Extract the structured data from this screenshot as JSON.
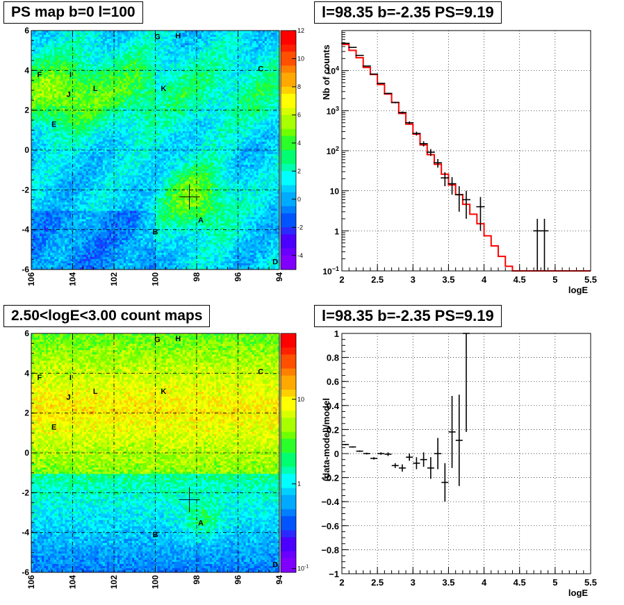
{
  "chart_data": [
    {
      "type": "heatmap",
      "title": "PS map b=0 l=100",
      "x_ticks": [
        "106",
        "104",
        "102",
        "100",
        "98",
        "96",
        "94"
      ],
      "xlim": [
        106,
        94
      ],
      "y_ticks": [
        "6",
        "4",
        "2",
        "0",
        "-2",
        "-4",
        "-6"
      ],
      "ylim": [
        -6,
        6
      ],
      "colorbar_ticks": [
        "12",
        "10",
        "8",
        "6",
        "4",
        "2",
        "0",
        "-2",
        "-4"
      ],
      "colorbar_range": [
        -5,
        12
      ],
      "grid": true,
      "marker": {
        "l": 98.35,
        "b": -2.35
      },
      "sources": [
        {
          "label": "G",
          "l": 99.9,
          "b": 5.7
        },
        {
          "label": "H",
          "l": 98.9,
          "b": 5.75
        },
        {
          "label": "F",
          "l": 105.6,
          "b": 3.8
        },
        {
          "label": "I",
          "l": 104.1,
          "b": 3.8
        },
        {
          "label": "C",
          "l": 94.9,
          "b": 4.1
        },
        {
          "label": "J",
          "l": 104.2,
          "b": 2.8
        },
        {
          "label": "L",
          "l": 102.9,
          "b": 3.1
        },
        {
          "label": "K",
          "l": 99.6,
          "b": 3.1
        },
        {
          "label": "E",
          "l": 104.9,
          "b": 1.3
        },
        {
          "label": "A",
          "l": 97.8,
          "b": -3.5
        },
        {
          "label": "B",
          "l": 100.0,
          "b": -4.1
        },
        {
          "label": "D",
          "l": 94.2,
          "b": -5.6
        }
      ]
    },
    {
      "type": "line",
      "title": "l=98.35 b=-2.35 PS=9.19",
      "xlabel": "logE",
      "ylabel": "Nb of counts",
      "xlim": [
        2,
        5.5
      ],
      "ylim": [
        0.1,
        100000
      ],
      "yscale": "log",
      "grid": true,
      "x_ticks": [
        "2",
        "2.5",
        "3",
        "3.5",
        "4",
        "4.5",
        "5",
        "5.5"
      ],
      "y_ticks": [
        {
          "v": 0.1,
          "base": "10",
          "exp": "−1"
        },
        {
          "v": 1,
          "base": "1",
          "exp": ""
        },
        {
          "v": 10,
          "base": "10",
          "exp": ""
        },
        {
          "v": 100,
          "base": "10",
          "exp": "2"
        },
        {
          "v": 1000,
          "base": "10",
          "exp": "3"
        },
        {
          "v": 10000,
          "base": "10",
          "exp": "4"
        }
      ],
      "model_color": "#ff0000",
      "model": {
        "edges": [
          2.0,
          2.1,
          2.2,
          2.3,
          2.4,
          2.5,
          2.6,
          2.7,
          2.8,
          2.9,
          3.0,
          3.1,
          3.2,
          3.3,
          3.4,
          3.5,
          3.6,
          3.7,
          3.8,
          3.9,
          4.0,
          4.1,
          4.2,
          4.3,
          4.4,
          5.5
        ],
        "values": [
          45000,
          32000,
          21000,
          12000,
          8000,
          4500,
          2600,
          1600,
          850,
          460,
          260,
          140,
          80,
          46,
          26,
          14,
          8,
          4.6,
          2.6,
          1.5,
          0.75,
          0.42,
          0.23,
          0.13,
          0.1
        ]
      },
      "data": [
        {
          "x": 2.05,
          "y": 48000,
          "yerr": 400
        },
        {
          "x": 2.15,
          "y": 38000,
          "yerr": 350
        },
        {
          "x": 2.25,
          "y": 24000,
          "yerr": 300
        },
        {
          "x": 2.35,
          "y": 13000,
          "yerr": 200
        },
        {
          "x": 2.45,
          "y": 8200,
          "yerr": 150
        },
        {
          "x": 2.55,
          "y": 4800,
          "yerr": 120
        },
        {
          "x": 2.65,
          "y": 2700,
          "yerr": 90
        },
        {
          "x": 2.75,
          "y": 1600,
          "yerr": 70
        },
        {
          "x": 2.85,
          "y": 900,
          "yerr": 55
        },
        {
          "x": 2.95,
          "y": 500,
          "yerr": 40
        },
        {
          "x": 3.05,
          "y": 270,
          "yerr": 30
        },
        {
          "x": 3.15,
          "y": 150,
          "yerr": 22
        },
        {
          "x": 3.25,
          "y": 92,
          "yerr": 18
        },
        {
          "x": 3.35,
          "y": 50,
          "yerr": 12
        },
        {
          "x": 3.45,
          "y": 21,
          "yerr": 8
        },
        {
          "x": 3.55,
          "y": 15,
          "yerr": 7
        },
        {
          "x": 3.65,
          "y": 8,
          "yerr": 5
        },
        {
          "x": 3.75,
          "y": 6,
          "yerr": 4
        },
        {
          "x": 3.95,
          "y": 4,
          "yerr": 3
        },
        {
          "x": 4.75,
          "y": 1,
          "yerr": 1
        },
        {
          "x": 4.85,
          "y": 1,
          "yerr": 1
        }
      ]
    },
    {
      "type": "heatmap",
      "title": "2.50<logE<3.00 count maps",
      "x_ticks": [
        "106",
        "104",
        "102",
        "100",
        "98",
        "96",
        "94"
      ],
      "xlim": [
        106,
        94
      ],
      "y_ticks": [
        "6",
        "4",
        "2",
        "0",
        "-2",
        "-4",
        "-6"
      ],
      "ylim": [
        -6,
        6
      ],
      "colorbar_scale": "log",
      "colorbar_ticks": [
        {
          "v": 10,
          "base": "10",
          "exp": ""
        },
        {
          "v": 1,
          "base": "1",
          "exp": ""
        },
        {
          "v": 0.1,
          "base": "10",
          "exp": "-1"
        }
      ],
      "grid": true,
      "marker": {
        "l": 98.35,
        "b": -2.35
      },
      "sources": [
        {
          "label": "G",
          "l": 99.9,
          "b": 5.7
        },
        {
          "label": "H",
          "l": 98.9,
          "b": 5.75
        },
        {
          "label": "F",
          "l": 105.6,
          "b": 3.8
        },
        {
          "label": "I",
          "l": 104.1,
          "b": 3.8
        },
        {
          "label": "C",
          "l": 94.9,
          "b": 4.1
        },
        {
          "label": "J",
          "l": 104.2,
          "b": 2.8
        },
        {
          "label": "L",
          "l": 102.9,
          "b": 3.1
        },
        {
          "label": "K",
          "l": 99.6,
          "b": 3.1
        },
        {
          "label": "E",
          "l": 104.9,
          "b": 1.3
        },
        {
          "label": "A",
          "l": 97.8,
          "b": -3.5
        },
        {
          "label": "B",
          "l": 100.0,
          "b": -4.1
        },
        {
          "label": "D",
          "l": 94.2,
          "b": -5.6
        }
      ]
    },
    {
      "type": "scatter",
      "title": "l=98.35 b=-2.35 PS=9.19",
      "xlabel": "logE",
      "ylabel": "(data-model)/model",
      "xlim": [
        2,
        5.5
      ],
      "ylim": [
        -1,
        1
      ],
      "grid": true,
      "x_ticks": [
        "2",
        "2.5",
        "3",
        "3.5",
        "4",
        "4.5",
        "5",
        "5.5"
      ],
      "y_ticks": [
        "1",
        "0.8",
        "0.6",
        "0.4",
        "0.2",
        "0",
        "−0.2",
        "−0.4",
        "−0.6",
        "−0.8",
        "−1"
      ],
      "data": [
        {
          "x": 2.05,
          "y": 0.075,
          "yerr": 0.005
        },
        {
          "x": 2.15,
          "y": 0.055,
          "yerr": 0.005
        },
        {
          "x": 2.25,
          "y": 0.02,
          "yerr": 0.006
        },
        {
          "x": 2.35,
          "y": 0.0,
          "yerr": 0.007
        },
        {
          "x": 2.45,
          "y": -0.04,
          "yerr": 0.01
        },
        {
          "x": 2.55,
          "y": 0.0,
          "yerr": 0.01
        },
        {
          "x": 2.65,
          "y": -0.005,
          "yerr": 0.015
        },
        {
          "x": 2.75,
          "y": -0.1,
          "yerr": 0.02
        },
        {
          "x": 2.85,
          "y": -0.12,
          "yerr": 0.03
        },
        {
          "x": 2.95,
          "y": -0.03,
          "yerr": 0.03
        },
        {
          "x": 3.05,
          "y": -0.08,
          "yerr": 0.05
        },
        {
          "x": 3.15,
          "y": -0.05,
          "yerr": 0.06
        },
        {
          "x": 3.25,
          "y": -0.12,
          "yerr": 0.09
        },
        {
          "x": 3.35,
          "y": 0.0,
          "yerr": 0.13
        },
        {
          "x": 3.45,
          "y": -0.24,
          "yerr": 0.16
        },
        {
          "x": 3.55,
          "y": 0.18,
          "yerr": 0.3
        },
        {
          "x": 3.65,
          "y": 0.11,
          "yerr": 0.38
        },
        {
          "x": 3.75,
          "y": 1.0,
          "yerr": 0.82
        }
      ]
    }
  ]
}
